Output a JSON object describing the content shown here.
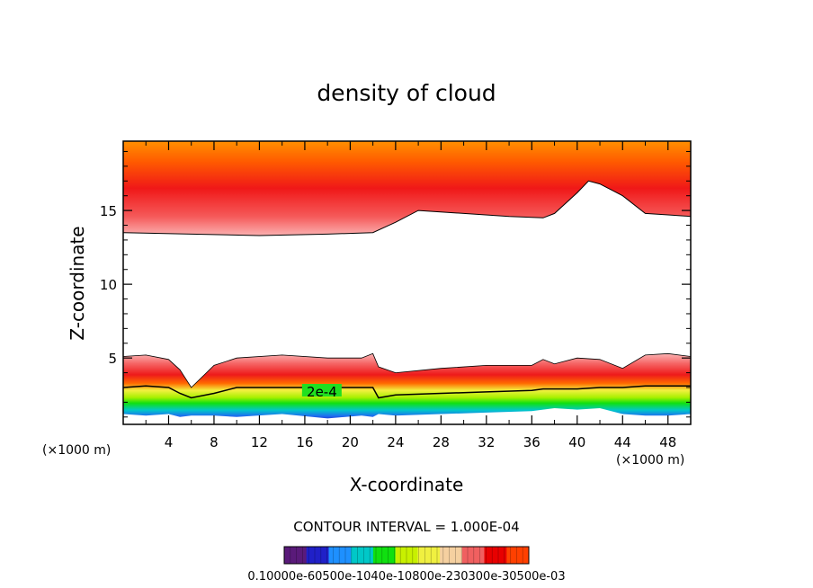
{
  "chart_data": {
    "type": "heatmap",
    "title": "density of cloud",
    "xlabel": "X-coordinate",
    "ylabel": "Z-coordinate",
    "x_unit": "(×1000 m)",
    "z_unit": "(×1000 m)",
    "xlim": [
      0,
      50
    ],
    "zlim": [
      0.5,
      19.7
    ],
    "x_ticks": [
      4,
      8,
      12,
      16,
      20,
      24,
      28,
      32,
      36,
      40,
      44,
      48
    ],
    "z_ticks": [
      5,
      10,
      15
    ],
    "contour_interval_text": "CONTOUR INTERVAL = 1.000E-04",
    "contour_label": "2e-4",
    "colorbar_labels_text": "0.10000e-60500e-1040e-10800e-230300e-30500e-03",
    "colorbar_stops": [
      "#5a1a7a",
      "#2020c8",
      "#1e90ff",
      "#00c8c8",
      "#10e010",
      "#c8f000",
      "#f0f040",
      "#f5d0a0",
      "#f06060",
      "#e80000",
      "#ff4000"
    ],
    "upper_cloud": {
      "x": [
        0,
        6,
        12,
        18,
        22,
        24,
        26,
        30,
        34,
        37,
        38,
        40,
        41,
        42,
        44,
        46,
        48,
        50
      ],
      "base_z": [
        13.5,
        13.4,
        13.3,
        13.4,
        13.5,
        14.2,
        15.0,
        14.8,
        14.6,
        14.5,
        14.8,
        16.2,
        17.0,
        16.8,
        16.0,
        14.8,
        14.7,
        14.6
      ]
    },
    "lower_cloud": {
      "x": [
        0,
        2,
        4,
        5,
        6,
        8,
        10,
        14,
        18,
        21,
        22,
        22.5,
        24,
        28,
        32,
        36,
        37,
        38,
        40,
        42,
        44,
        46,
        48,
        50
      ],
      "top_z": [
        5.1,
        5.2,
        4.9,
        4.2,
        3.0,
        4.5,
        5.0,
        5.2,
        5.0,
        5.0,
        5.3,
        4.4,
        4.0,
        4.3,
        4.5,
        4.5,
        4.9,
        4.6,
        5.0,
        4.9,
        4.3,
        5.2,
        5.3,
        5.1
      ],
      "contour_2e4_z": [
        3.0,
        3.1,
        3.0,
        2.6,
        2.3,
        2.6,
        3.0,
        3.0,
        3.0,
        3.0,
        3.0,
        2.3,
        2.5,
        2.6,
        2.7,
        2.8,
        2.9,
        2.9,
        2.9,
        3.0,
        3.0,
        3.1,
        3.1,
        3.1
      ],
      "base_z": [
        1.2,
        1.1,
        1.2,
        1.0,
        1.1,
        1.1,
        1.0,
        1.2,
        0.9,
        1.1,
        1.0,
        1.2,
        1.1,
        1.2,
        1.3,
        1.4,
        1.5,
        1.6,
        1.5,
        1.6,
        1.2,
        1.1,
        1.1,
        1.2
      ]
    }
  }
}
